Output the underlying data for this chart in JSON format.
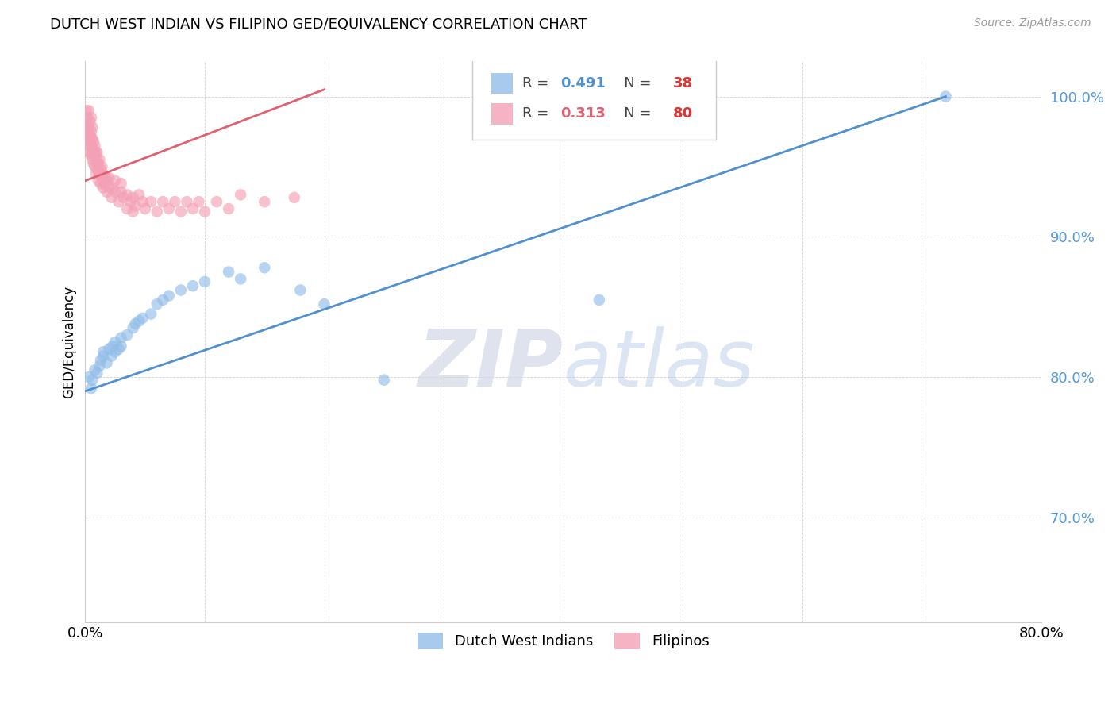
{
  "title": "DUTCH WEST INDIAN VS FILIPINO GED/EQUIVALENCY CORRELATION CHART",
  "source": "Source: ZipAtlas.com",
  "ylabel": "GED/Equivalency",
  "xlim": [
    0.0,
    0.8
  ],
  "ylim": [
    0.625,
    1.025
  ],
  "yticks": [
    0.7,
    0.8,
    0.9,
    1.0
  ],
  "ytick_labels": [
    "70.0%",
    "80.0%",
    "90.0%",
    "100.0%"
  ],
  "xticks": [
    0.0,
    0.1,
    0.2,
    0.3,
    0.4,
    0.5,
    0.6,
    0.7,
    0.8
  ],
  "xtick_labels": [
    "0.0%",
    "",
    "",
    "",
    "",
    "",
    "",
    "",
    "80.0%"
  ],
  "blue_color": "#92BDE8",
  "pink_color": "#F4A0B5",
  "blue_line_color": "#5090CC",
  "pink_line_color": "#E06070",
  "legend_label1": "Dutch West Indians",
  "legend_label2": "Filipinos",
  "watermark_zip": "ZIP",
  "watermark_atlas": "atlas",
  "blue_R": "0.491",
  "blue_N": "38",
  "pink_R": "0.313",
  "pink_N": "80",
  "blue_scatter_x": [
    0.003,
    0.005,
    0.006,
    0.008,
    0.01,
    0.012,
    0.013,
    0.015,
    0.015,
    0.018,
    0.02,
    0.022,
    0.023,
    0.025,
    0.025,
    0.028,
    0.03,
    0.03,
    0.035,
    0.04,
    0.042,
    0.045,
    0.048,
    0.055,
    0.06,
    0.065,
    0.07,
    0.08,
    0.09,
    0.1,
    0.12,
    0.13,
    0.15,
    0.18,
    0.2,
    0.25,
    0.43,
    0.72
  ],
  "blue_scatter_y": [
    0.8,
    0.792,
    0.798,
    0.805,
    0.803,
    0.808,
    0.812,
    0.815,
    0.818,
    0.81,
    0.82,
    0.815,
    0.822,
    0.818,
    0.825,
    0.82,
    0.828,
    0.822,
    0.83,
    0.835,
    0.838,
    0.84,
    0.842,
    0.845,
    0.852,
    0.855,
    0.858,
    0.862,
    0.865,
    0.868,
    0.875,
    0.87,
    0.878,
    0.862,
    0.852,
    0.798,
    0.855,
    1.0
  ],
  "pink_scatter_x": [
    0.001,
    0.001,
    0.002,
    0.002,
    0.002,
    0.003,
    0.003,
    0.003,
    0.004,
    0.004,
    0.004,
    0.004,
    0.005,
    0.005,
    0.005,
    0.005,
    0.005,
    0.006,
    0.006,
    0.006,
    0.006,
    0.007,
    0.007,
    0.007,
    0.008,
    0.008,
    0.008,
    0.009,
    0.009,
    0.01,
    0.01,
    0.01,
    0.011,
    0.011,
    0.012,
    0.012,
    0.013,
    0.013,
    0.014,
    0.014,
    0.015,
    0.015,
    0.016,
    0.017,
    0.018,
    0.018,
    0.02,
    0.02,
    0.022,
    0.023,
    0.025,
    0.025,
    0.028,
    0.03,
    0.03,
    0.032,
    0.035,
    0.035,
    0.038,
    0.04,
    0.04,
    0.042,
    0.045,
    0.048,
    0.05,
    0.055,
    0.06,
    0.065,
    0.07,
    0.075,
    0.08,
    0.085,
    0.09,
    0.095,
    0.1,
    0.11,
    0.12,
    0.13,
    0.15,
    0.175
  ],
  "pink_scatter_y": [
    0.99,
    0.98,
    0.975,
    0.985,
    0.97,
    0.978,
    0.965,
    0.99,
    0.972,
    0.968,
    0.982,
    0.96,
    0.975,
    0.965,
    0.958,
    0.985,
    0.97,
    0.978,
    0.96,
    0.97,
    0.955,
    0.962,
    0.968,
    0.952,
    0.958,
    0.965,
    0.95,
    0.96,
    0.945,
    0.955,
    0.948,
    0.96,
    0.94,
    0.952,
    0.945,
    0.955,
    0.938,
    0.948,
    0.942,
    0.95,
    0.935,
    0.945,
    0.938,
    0.942,
    0.932,
    0.94,
    0.935,
    0.942,
    0.928,
    0.935,
    0.932,
    0.94,
    0.925,
    0.932,
    0.938,
    0.928,
    0.92,
    0.93,
    0.925,
    0.918,
    0.928,
    0.922,
    0.93,
    0.925,
    0.92,
    0.925,
    0.918,
    0.925,
    0.92,
    0.925,
    0.918,
    0.925,
    0.92,
    0.925,
    0.918,
    0.925,
    0.92,
    0.93,
    0.925,
    0.928
  ],
  "blue_line_x": [
    0.0,
    0.72
  ],
  "blue_line_y": [
    0.79,
    1.0
  ],
  "pink_line_x": [
    0.0,
    0.2
  ],
  "pink_line_y": [
    0.94,
    1.005
  ]
}
